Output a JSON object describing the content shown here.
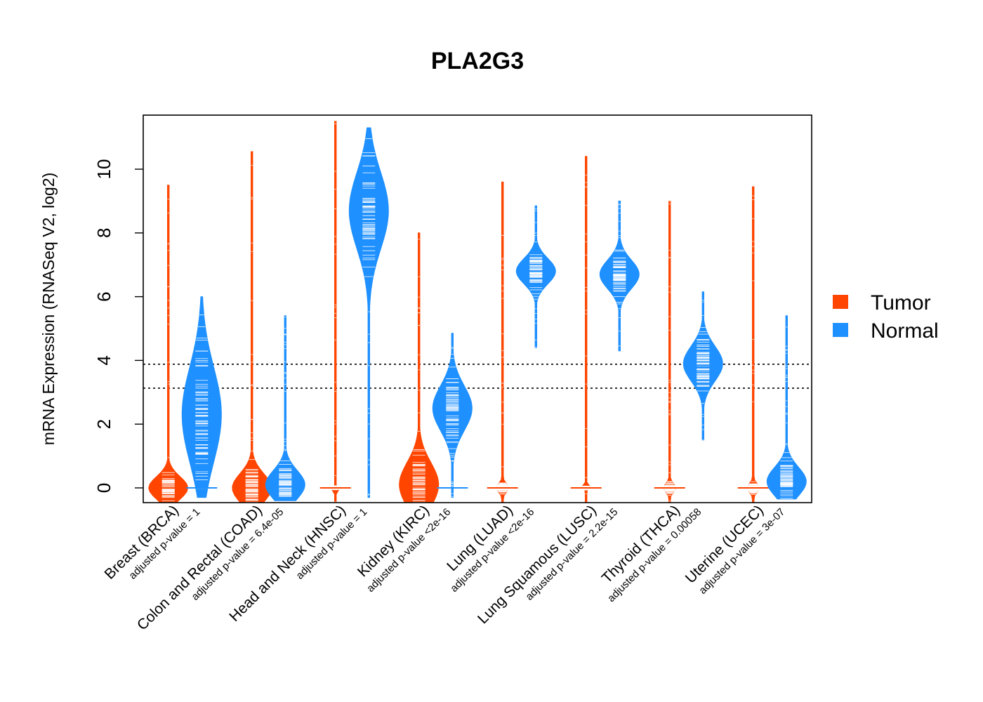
{
  "chart_data": {
    "type": "beanplot",
    "title": "PLA2G3",
    "xlabel": "",
    "ylabel": "mRNA Expression (RNASeq V2, log2)",
    "ylim": [
      -0.45,
      11.75
    ],
    "yticks": [
      0,
      2,
      4,
      6,
      8,
      10
    ],
    "y_tick_labels": [
      "0",
      "2",
      "4",
      "6",
      "8",
      "10"
    ],
    "reference_lines": [
      3.88,
      3.13
    ],
    "legend": {
      "position": "right",
      "entries": [
        {
          "label": "Tumor",
          "color": "#FF4500"
        },
        {
          "label": "Normal",
          "color": "#1E90FF"
        }
      ]
    },
    "categories": [
      {
        "label": "Breast (BRCA)",
        "pvalue": "adjusted p-value = 1"
      },
      {
        "label": "Colon and Rectal (COAD)",
        "pvalue": "adjusted p-value = 6.4e-05"
      },
      {
        "label": "Head and Neck (HNSC)",
        "pvalue": "adjusted p-value = 1"
      },
      {
        "label": "Kidney (KIRC)",
        "pvalue": "adjusted p-value <2e-16"
      },
      {
        "label": "Lung (LUAD)",
        "pvalue": "adjusted p-value <2e-16"
      },
      {
        "label": "Lung Squamous (LUSC)",
        "pvalue": "adjusted p-value = 2.2e-15"
      },
      {
        "label": "Thyroid (THCA)",
        "pvalue": "adjusted p-value = 0.00058"
      },
      {
        "label": "Uterine (UCEC)",
        "pvalue": "adjusted p-value = 3e-07"
      }
    ],
    "series": [
      {
        "name": "Tumor",
        "color": "#FF4500",
        "groups": [
          {
            "median": 0,
            "min": -0.5,
            "max": 9.5,
            "peak": 0.0,
            "spread": 0.35
          },
          {
            "median": 0,
            "min": -0.5,
            "max": 10.55,
            "peak": 0.0,
            "spread": 0.45
          },
          {
            "median": 0,
            "min": -0.5,
            "max": 11.5,
            "peak": 0.0,
            "spread": 0.05
          },
          {
            "median": 0.05,
            "min": -0.5,
            "max": 8.0,
            "peak": 0.1,
            "spread": 0.7
          },
          {
            "median": 0,
            "min": -0.5,
            "max": 9.6,
            "peak": 0.0,
            "spread": 0.15
          },
          {
            "median": 0,
            "min": -0.5,
            "max": 10.4,
            "peak": 0.0,
            "spread": 0.05
          },
          {
            "median": 0,
            "min": -0.5,
            "max": 9.0,
            "peak": 0.0,
            "spread": 0.15
          },
          {
            "median": 0,
            "min": -0.5,
            "max": 9.45,
            "peak": 0.0,
            "spread": 0.15
          }
        ]
      },
      {
        "name": "Normal",
        "color": "#1E90FF",
        "groups": [
          {
            "median": 0,
            "min": -0.3,
            "max": 6.0,
            "peak": 2.3,
            "spread": 1.5
          },
          {
            "median": 0.05,
            "min": -0.4,
            "max": 5.4,
            "peak": 0.1,
            "spread": 0.45
          },
          {
            "median": 8.5,
            "min": -0.3,
            "max": 11.3,
            "peak": 8.7,
            "spread": 1.2
          },
          {
            "median": 0,
            "min": -0.3,
            "max": 4.85,
            "peak": 2.5,
            "spread": 0.7
          },
          {
            "median": 6.8,
            "min": 4.4,
            "max": 8.85,
            "peak": 6.8,
            "spread": 0.4
          },
          {
            "median": 6.75,
            "min": 4.3,
            "max": 9.0,
            "peak": 6.7,
            "spread": 0.45
          },
          {
            "median": 3.85,
            "min": 1.5,
            "max": 6.15,
            "peak": 3.9,
            "spread": 0.55
          },
          {
            "median": 0,
            "min": -0.35,
            "max": 5.4,
            "peak": 0.2,
            "spread": 0.45
          }
        ]
      }
    ]
  }
}
